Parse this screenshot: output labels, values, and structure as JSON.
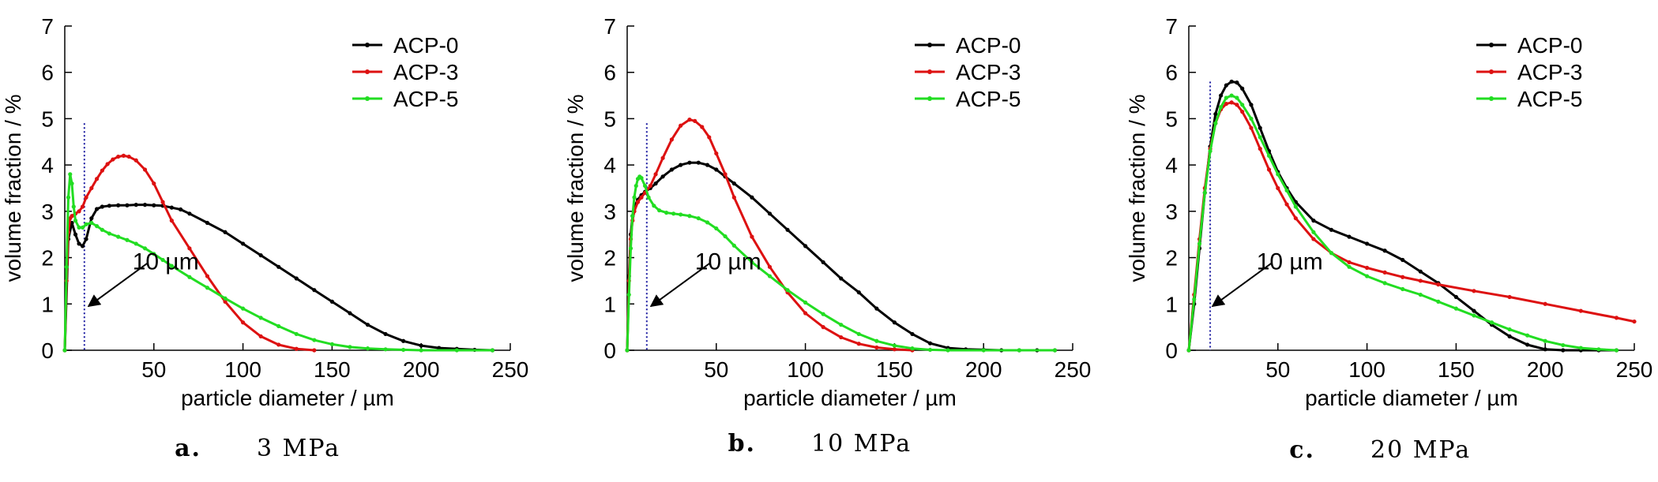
{
  "chart_data": [
    {
      "type": "line",
      "caption_letter": "a.",
      "caption_label": "3 MPa",
      "xlabel": "particle diameter / µm",
      "ylabel": "volume fraction / %",
      "xlim": [
        0,
        250
      ],
      "ylim": [
        0,
        7
      ],
      "xticks": [
        50,
        100,
        150,
        200,
        250
      ],
      "yticks": [
        0,
        1,
        2,
        3,
        4,
        5,
        6,
        7
      ],
      "tick_zero": "0",
      "annotation": "10 µm",
      "marker_x": 11,
      "marker_ymax": 4.9,
      "legend_position": "top-right",
      "series": [
        {
          "name": "ACP-0",
          "color": "#000000",
          "x": [
            0,
            2,
            4,
            6,
            8,
            10,
            12,
            15,
            18,
            21,
            25,
            30,
            35,
            40,
            45,
            50,
            55,
            60,
            65,
            70,
            80,
            90,
            100,
            110,
            120,
            130,
            140,
            150,
            160,
            170,
            180,
            190,
            200,
            210,
            220,
            230,
            240
          ],
          "y": [
            0,
            2.4,
            2.75,
            2.5,
            2.3,
            2.25,
            2.4,
            2.85,
            3.05,
            3.1,
            3.12,
            3.13,
            3.13,
            3.14,
            3.14,
            3.13,
            3.12,
            3.08,
            3.04,
            2.95,
            2.75,
            2.55,
            2.3,
            2.05,
            1.8,
            1.55,
            1.3,
            1.05,
            0.8,
            0.55,
            0.35,
            0.2,
            0.1,
            0.05,
            0.03,
            0.01,
            0
          ]
        },
        {
          "name": "ACP-3",
          "color": "#dd1111",
          "x": [
            0,
            1,
            2,
            3,
            4,
            6,
            8,
            10,
            12,
            15,
            18,
            21,
            24,
            27,
            30,
            33,
            36,
            40,
            45,
            50,
            55,
            60,
            70,
            80,
            90,
            100,
            110,
            120,
            130,
            140
          ],
          "y": [
            0,
            1.5,
            2.55,
            2.85,
            2.9,
            2.95,
            3.0,
            3.1,
            3.3,
            3.5,
            3.7,
            3.88,
            4.02,
            4.12,
            4.18,
            4.2,
            4.18,
            4.1,
            3.9,
            3.6,
            3.2,
            2.8,
            2.2,
            1.6,
            1.05,
            0.6,
            0.3,
            0.12,
            0.03,
            0
          ]
        },
        {
          "name": "ACP-5",
          "color": "#22dd22",
          "x": [
            0,
            1,
            2,
            3,
            4,
            5,
            6,
            8,
            10,
            12,
            15,
            18,
            21,
            25,
            30,
            35,
            40,
            45,
            50,
            55,
            60,
            70,
            80,
            90,
            100,
            110,
            120,
            130,
            140,
            150,
            160,
            170,
            180,
            190,
            200,
            220,
            240
          ],
          "y": [
            0,
            1.8,
            3.3,
            3.8,
            3.6,
            3.1,
            2.8,
            2.65,
            2.65,
            2.72,
            2.75,
            2.68,
            2.6,
            2.52,
            2.45,
            2.38,
            2.3,
            2.2,
            2.08,
            1.95,
            1.82,
            1.58,
            1.35,
            1.12,
            0.9,
            0.7,
            0.52,
            0.35,
            0.22,
            0.13,
            0.07,
            0.04,
            0.02,
            0.01,
            0,
            0,
            0
          ]
        }
      ]
    },
    {
      "type": "line",
      "caption_letter": "b.",
      "caption_label": "10 MPa",
      "xlabel": "particle diameter / µm",
      "ylabel": "volume fraction / %",
      "xlim": [
        0,
        250
      ],
      "ylim": [
        0,
        7
      ],
      "xticks": [
        50,
        100,
        150,
        200,
        250
      ],
      "yticks": [
        0,
        1,
        2,
        3,
        4,
        5,
        6,
        7
      ],
      "tick_zero": "0",
      "annotation": "10 µm",
      "marker_x": 11,
      "marker_ymax": 4.9,
      "legend_position": "top-right",
      "series": [
        {
          "name": "ACP-0",
          "color": "#000000",
          "x": [
            0,
            1,
            2,
            3,
            4,
            6,
            8,
            10,
            13,
            16,
            20,
            25,
            30,
            35,
            40,
            45,
            50,
            55,
            60,
            70,
            80,
            90,
            100,
            110,
            120,
            130,
            140,
            150,
            160,
            170,
            180,
            190,
            200,
            210,
            220,
            230,
            240
          ],
          "y": [
            0,
            1.6,
            2.5,
            2.9,
            3.1,
            3.25,
            3.35,
            3.42,
            3.5,
            3.6,
            3.75,
            3.9,
            4.0,
            4.05,
            4.05,
            4.0,
            3.9,
            3.75,
            3.6,
            3.3,
            2.95,
            2.6,
            2.25,
            1.9,
            1.55,
            1.25,
            0.9,
            0.6,
            0.35,
            0.15,
            0.05,
            0.02,
            0.01,
            0,
            0,
            0,
            0
          ]
        },
        {
          "name": "ACP-3",
          "color": "#dd1111",
          "x": [
            0,
            1,
            2,
            3,
            4,
            6,
            8,
            10,
            13,
            16,
            20,
            25,
            30,
            35,
            38,
            42,
            46,
            50,
            55,
            60,
            70,
            80,
            90,
            100,
            110,
            120,
            130,
            140,
            150,
            160
          ],
          "y": [
            0,
            1.5,
            2.4,
            2.8,
            3.0,
            3.2,
            3.3,
            3.4,
            3.55,
            3.8,
            4.15,
            4.55,
            4.85,
            4.98,
            4.95,
            4.82,
            4.6,
            4.25,
            3.8,
            3.3,
            2.45,
            1.8,
            1.25,
            0.8,
            0.5,
            0.28,
            0.14,
            0.06,
            0.02,
            0
          ]
        },
        {
          "name": "ACP-5",
          "color": "#22dd22",
          "x": [
            0,
            1,
            2,
            3,
            4,
            5,
            6,
            7,
            8,
            10,
            12,
            15,
            18,
            22,
            26,
            30,
            35,
            40,
            45,
            50,
            55,
            60,
            70,
            80,
            90,
            100,
            110,
            120,
            130,
            140,
            150,
            160,
            170,
            180,
            200,
            220,
            240
          ],
          "y": [
            0,
            1.2,
            2.2,
            2.9,
            3.3,
            3.55,
            3.7,
            3.75,
            3.72,
            3.55,
            3.3,
            3.12,
            3.02,
            2.97,
            2.95,
            2.93,
            2.9,
            2.85,
            2.76,
            2.63,
            2.46,
            2.26,
            1.9,
            1.6,
            1.3,
            1.03,
            0.78,
            0.55,
            0.35,
            0.2,
            0.1,
            0.04,
            0.01,
            0,
            0,
            0,
            0
          ]
        }
      ]
    },
    {
      "type": "line",
      "caption_letter": "c.",
      "caption_label": "20 MPa",
      "xlabel": "particle diameter / µm",
      "ylabel": "volume fraction / %",
      "xlim": [
        0,
        250
      ],
      "ylim": [
        0,
        7
      ],
      "xticks": [
        50,
        100,
        150,
        200,
        250
      ],
      "yticks": [
        0,
        1,
        2,
        3,
        4,
        5,
        6,
        7
      ],
      "tick_zero": "0",
      "annotation": "10 µm",
      "marker_x": 12,
      "marker_ymax": 5.8,
      "legend_position": "top-right",
      "series": [
        {
          "name": "ACP-0",
          "color": "#000000",
          "x": [
            0,
            3,
            6,
            9,
            12,
            15,
            18,
            21,
            24,
            27,
            30,
            35,
            40,
            45,
            50,
            55,
            60,
            70,
            80,
            90,
            100,
            110,
            120,
            130,
            140,
            150,
            160,
            170,
            180,
            190,
            200,
            210,
            220,
            230,
            240
          ],
          "y": [
            0,
            1.0,
            2.2,
            3.4,
            4.4,
            5.1,
            5.5,
            5.72,
            5.8,
            5.78,
            5.65,
            5.3,
            4.8,
            4.3,
            3.85,
            3.5,
            3.2,
            2.8,
            2.6,
            2.45,
            2.3,
            2.15,
            1.95,
            1.7,
            1.45,
            1.15,
            0.85,
            0.55,
            0.3,
            0.12,
            0.02,
            0,
            0,
            0,
            0
          ]
        },
        {
          "name": "ACP-3",
          "color": "#dd1111",
          "x": [
            0,
            3,
            6,
            9,
            12,
            15,
            18,
            21,
            24,
            27,
            30,
            35,
            40,
            45,
            50,
            55,
            60,
            70,
            80,
            90,
            100,
            110,
            120,
            130,
            140,
            160,
            180,
            200,
            220,
            240,
            250
          ],
          "y": [
            0,
            1.2,
            2.4,
            3.5,
            4.35,
            4.9,
            5.2,
            5.32,
            5.35,
            5.3,
            5.15,
            4.8,
            4.35,
            3.9,
            3.5,
            3.15,
            2.85,
            2.4,
            2.1,
            1.9,
            1.78,
            1.68,
            1.58,
            1.5,
            1.42,
            1.28,
            1.15,
            1.0,
            0.85,
            0.7,
            0.62
          ]
        },
        {
          "name": "ACP-5",
          "color": "#22dd22",
          "x": [
            0,
            3,
            6,
            9,
            12,
            15,
            18,
            21,
            24,
            27,
            30,
            35,
            40,
            45,
            50,
            55,
            60,
            70,
            80,
            90,
            100,
            110,
            120,
            130,
            140,
            150,
            160,
            170,
            180,
            190,
            200,
            210,
            220,
            230,
            240
          ],
          "y": [
            0,
            1.1,
            2.3,
            3.4,
            4.3,
            4.9,
            5.25,
            5.45,
            5.5,
            5.45,
            5.3,
            5.0,
            4.6,
            4.2,
            3.8,
            3.45,
            3.1,
            2.55,
            2.1,
            1.8,
            1.6,
            1.45,
            1.32,
            1.2,
            1.05,
            0.9,
            0.75,
            0.6,
            0.45,
            0.32,
            0.2,
            0.11,
            0.05,
            0.02,
            0
          ]
        }
      ]
    }
  ]
}
